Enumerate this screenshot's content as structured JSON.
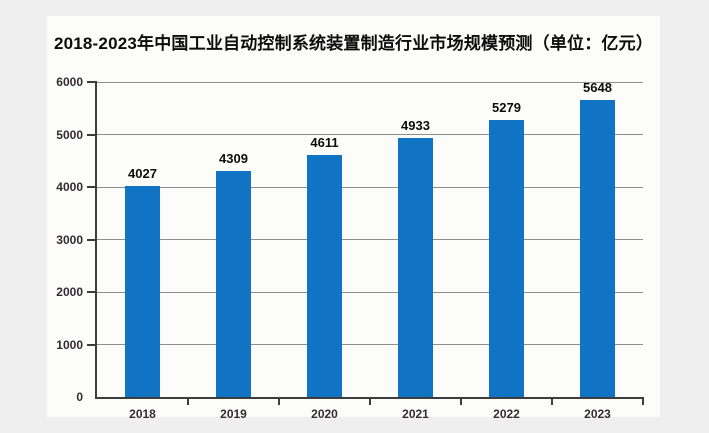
{
  "page": {
    "background_color": "#eeefee",
    "card_background_color": "#fcfcfb"
  },
  "chart_data": {
    "type": "bar",
    "title": "2018-2023年中国工业自动控制系统装置制造行业市场规模预测（单位：亿元）",
    "unit": "亿元",
    "categories": [
      "2018",
      "2019",
      "2020",
      "2021",
      "2022",
      "2023"
    ],
    "values": [
      4027,
      4309,
      4611,
      4933,
      5279,
      5648
    ],
    "value_labels": [
      "4027",
      "4309",
      "4611",
      "4933",
      "5279",
      "5648"
    ],
    "xlabel": "",
    "ylabel": "",
    "ylim": [
      0,
      6000
    ],
    "yticks": [
      0,
      1000,
      2000,
      3000,
      4000,
      5000,
      6000
    ],
    "ytick_labels": [
      "0",
      "1000",
      "2000",
      "3000",
      "4000",
      "5000",
      "6000"
    ],
    "grid": true,
    "legend": null,
    "bar_color": "#1173c4",
    "gridline_color": "#8f8f8f",
    "axis_color": "#3d3d3d",
    "tick_label_color": "#332b31",
    "value_label_color": "#0d0d0d"
  }
}
